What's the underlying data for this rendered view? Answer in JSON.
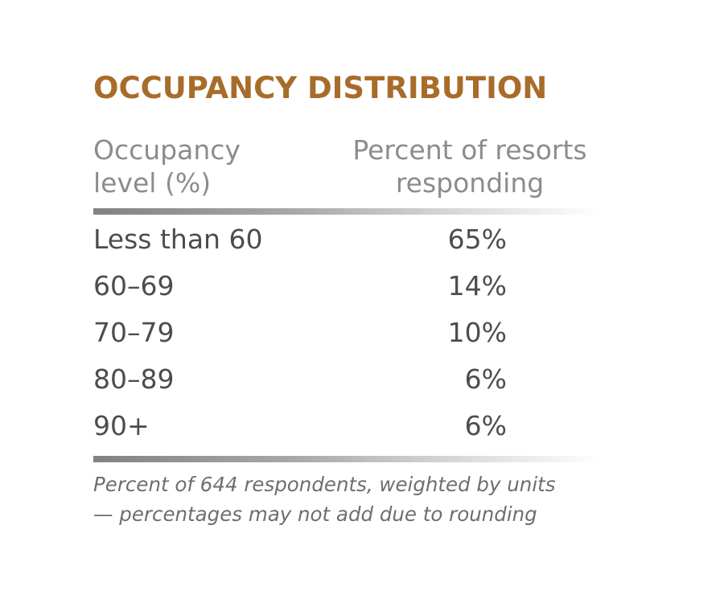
{
  "colors": {
    "title": "#a86c2a",
    "header": "#8a8c8f",
    "body": "#4d4d4f"
  },
  "chart_data": {
    "type": "table",
    "title": "OCCUPANCY DISTRIBUTION",
    "columns": [
      "Occupancy level (%)",
      "Percent of resorts responding"
    ],
    "header": {
      "col1_line1": "Occupancy",
      "col1_line2": "level (%)",
      "col2_line1": "Percent of resorts",
      "col2_line2": "responding"
    },
    "rows": [
      {
        "level": "Less than 60",
        "percent": "65%"
      },
      {
        "level": "60–69",
        "percent": "14%"
      },
      {
        "level": "70–79",
        "percent": "10%"
      },
      {
        "level": "80–89",
        "percent": "6%"
      },
      {
        "level": "90+",
        "percent": "6%"
      }
    ],
    "notes": [
      "Percent of 644 respondents, weighted by units",
      "— percentages may not add due to rounding"
    ]
  }
}
